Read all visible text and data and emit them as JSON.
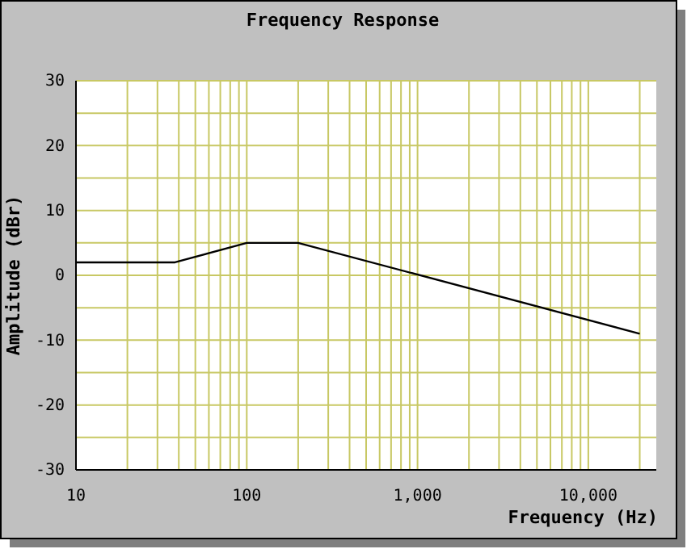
{
  "chart_data": {
    "type": "line",
    "title": "Frequency Response",
    "xlabel": "Frequency (Hz)",
    "ylabel": "Amplitude (dBr)",
    "log": "x",
    "grid": true,
    "marker": "none",
    "line_style": "solid",
    "x": [
      10,
      38,
      100,
      200,
      20000
    ],
    "series": [
      {
        "color": "#000000",
        "values": [
          2,
          2,
          5,
          5,
          -9
        ]
      }
    ],
    "xlim": [
      10,
      25000
    ],
    "xticks": [
      10,
      {
        "value": 20,
        "label": null
      },
      {
        "value": 30,
        "label": null
      },
      {
        "value": 40,
        "label": null
      },
      {
        "value": 50,
        "label": null
      },
      {
        "value": 60,
        "label": null
      },
      {
        "value": 70,
        "label": null
      },
      {
        "value": 80,
        "label": null
      },
      {
        "value": 90,
        "label": null
      },
      100,
      {
        "value": 200,
        "label": null
      },
      {
        "value": 300,
        "label": null
      },
      {
        "value": 400,
        "label": null
      },
      {
        "value": 500,
        "label": null
      },
      {
        "value": 600,
        "label": null
      },
      {
        "value": 700,
        "label": null
      },
      {
        "value": 800,
        "label": null
      },
      {
        "value": 900,
        "label": null
      },
      {
        "value": 1000,
        "label": "1,000"
      },
      {
        "value": 2000,
        "label": null
      },
      {
        "value": 3000,
        "label": null
      },
      {
        "value": 4000,
        "label": null
      },
      {
        "value": 5000,
        "label": null
      },
      {
        "value": 6000,
        "label": null
      },
      {
        "value": 7000,
        "label": null
      },
      {
        "value": 8000,
        "label": null
      },
      {
        "value": 9000,
        "label": null
      },
      {
        "value": 10000,
        "label": "10,000"
      },
      {
        "value": 20000,
        "label": null
      }
    ],
    "ylim": [
      -30,
      30
    ],
    "yticks": [
      -30,
      {
        "value": -25,
        "label": null
      },
      -20,
      {
        "value": -15,
        "label": null
      },
      -10,
      {
        "value": -5,
        "label": null
      },
      0,
      {
        "value": 5,
        "label": null
      },
      10,
      {
        "value": 15,
        "label": null
      },
      20,
      {
        "value": 25,
        "label": null
      },
      30
    ]
  }
}
